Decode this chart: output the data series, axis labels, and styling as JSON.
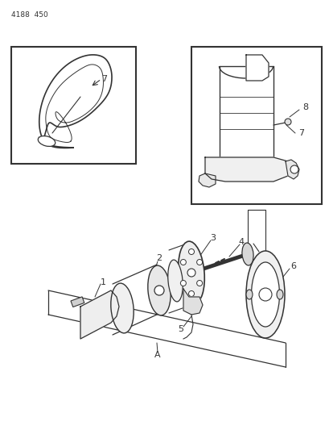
{
  "bg_color": "#ffffff",
  "line_color": "#333333",
  "label_color": "#333333",
  "fig_width": 4.1,
  "fig_height": 5.33,
  "dpi": 100,
  "header_text": "4188  450"
}
